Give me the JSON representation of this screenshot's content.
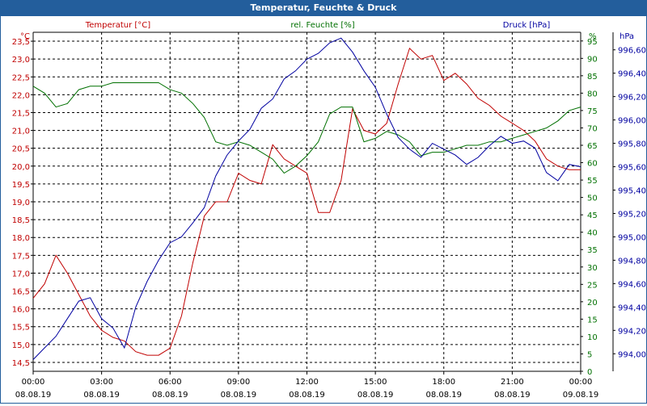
{
  "window": {
    "title": "Temperatur, Feuchte & Druck"
  },
  "chart_data": {
    "type": "line",
    "title": "Temperatur, Feuchte & Druck",
    "colors": {
      "temperature": "#c00000",
      "humidity": "#007000",
      "pressure": "#0000a0",
      "title_bar": "#235e9c",
      "grid": "#000000"
    },
    "legend": {
      "temperature": "Temperatur [°C]",
      "humidity": "rel. Feuchte [%]",
      "pressure": "Druck [hPa]"
    },
    "axes": {
      "left": {
        "unit": "°C",
        "min": 14.25,
        "max": 23.75,
        "ticks": [
          "14,5",
          "15,0",
          "15,5",
          "16,0",
          "16,5",
          "17,0",
          "17,5",
          "18,0",
          "18,5",
          "19,0",
          "19,5",
          "20,0",
          "20,5",
          "21,0",
          "21,5",
          "22,0",
          "22,5",
          "23,0",
          "23,5"
        ]
      },
      "middle": {
        "unit": "%",
        "min": 0,
        "max": 97.5,
        "ticks": [
          "0",
          "5",
          "10",
          "15",
          "20",
          "25",
          "30",
          "35",
          "40",
          "45",
          "50",
          "55",
          "60",
          "65",
          "70",
          "75",
          "80",
          "85",
          "90",
          "95"
        ]
      },
      "right": {
        "unit": "hPa",
        "min": 993.85,
        "max": 996.75,
        "ticks": [
          "994,00",
          "994,20",
          "994,40",
          "994,60",
          "994,80",
          "995,00",
          "995,20",
          "995,40",
          "995,60",
          "995,80",
          "996,00",
          "996,20",
          "996,40",
          "996,60"
        ]
      },
      "x": {
        "min_hours": 0,
        "max_hours": 24,
        "ticks": [
          {
            "time": "00:00",
            "date": "08.08.19"
          },
          {
            "time": "03:00",
            "date": "08.08.19"
          },
          {
            "time": "06:00",
            "date": "08.08.19"
          },
          {
            "time": "09:00",
            "date": "08.08.19"
          },
          {
            "time": "12:00",
            "date": "08.08.19"
          },
          {
            "time": "15:00",
            "date": "08.08.19"
          },
          {
            "time": "18:00",
            "date": "08.08.19"
          },
          {
            "time": "21:00",
            "date": "08.08.19"
          },
          {
            "time": "00:00",
            "date": "09.08.19"
          }
        ]
      }
    },
    "grid": true,
    "series": [
      {
        "name": "Temperatur [°C]",
        "axis": "left",
        "x": [
          0,
          0.5,
          1,
          1.5,
          2,
          2.5,
          3,
          3.5,
          4,
          4.5,
          5,
          5.5,
          6,
          6.5,
          7,
          7.5,
          8,
          8.5,
          9,
          9.5,
          10,
          10.5,
          11,
          11.5,
          12,
          12.5,
          13,
          13.5,
          14,
          14.5,
          15,
          15.5,
          16,
          16.5,
          17,
          17.5,
          18,
          18.5,
          19,
          19.5,
          20,
          20.5,
          21,
          21.5,
          22,
          22.5,
          23,
          23.5,
          24
        ],
        "values": [
          16.3,
          16.7,
          17.5,
          17.0,
          16.4,
          15.8,
          15.4,
          15.2,
          15.1,
          14.8,
          14.7,
          14.7,
          14.9,
          15.8,
          17.3,
          18.6,
          19.0,
          19.0,
          19.8,
          19.6,
          19.5,
          20.6,
          20.2,
          20.0,
          19.8,
          18.7,
          18.7,
          19.6,
          21.6,
          21.0,
          20.9,
          21.2,
          22.3,
          23.3,
          23.0,
          23.1,
          22.4,
          22.6,
          22.3,
          21.9,
          21.7,
          21.4,
          21.2,
          21.0,
          20.7,
          20.2,
          20.0,
          19.9,
          19.9
        ]
      },
      {
        "name": "rel. Feuchte [%]",
        "axis": "middle",
        "x": [
          0,
          0.5,
          1,
          1.5,
          2,
          2.5,
          3,
          3.5,
          4,
          4.5,
          5,
          5.5,
          6,
          6.5,
          7,
          7.5,
          8,
          8.5,
          9,
          9.5,
          10,
          10.5,
          11,
          11.5,
          12,
          12.5,
          13,
          13.5,
          14,
          14.5,
          15,
          15.5,
          16,
          16.5,
          17,
          17.5,
          18,
          18.5,
          19,
          19.5,
          20,
          20.5,
          21,
          21.5,
          22,
          22.5,
          23,
          23.5,
          24
        ],
        "values": [
          82,
          80,
          76,
          77,
          81,
          82,
          82,
          83,
          83,
          83,
          83,
          83,
          81,
          80,
          77,
          73,
          66,
          65,
          66,
          65,
          63,
          61,
          57,
          59,
          62,
          66,
          74,
          76,
          76,
          66,
          67,
          69,
          68,
          66,
          62,
          63,
          63,
          64,
          65,
          65,
          66,
          66,
          67,
          68,
          69,
          70,
          72,
          75,
          76
        ]
      },
      {
        "name": "Druck [hPa]",
        "axis": "right",
        "x": [
          0,
          0.5,
          1,
          1.5,
          2,
          2.5,
          3,
          3.5,
          4,
          4.5,
          5,
          5.5,
          6,
          6.5,
          7,
          7.5,
          8,
          8.5,
          9,
          9.5,
          10,
          10.5,
          11,
          11.5,
          12,
          12.5,
          13,
          13.5,
          14,
          14.5,
          15,
          15.5,
          16,
          16.5,
          17,
          17.5,
          18,
          18.5,
          19,
          19.5,
          20,
          20.5,
          21,
          21.5,
          22,
          22.5,
          23,
          23.5,
          24
        ],
        "values": [
          993.95,
          994.05,
          994.15,
          994.3,
          994.45,
          994.48,
          994.3,
          994.22,
          994.05,
          994.4,
          994.62,
          994.8,
          994.95,
          995.0,
          995.12,
          995.25,
          995.52,
          995.7,
          995.82,
          995.92,
          996.1,
          996.18,
          996.35,
          996.42,
          996.52,
          996.57,
          996.66,
          996.7,
          996.58,
          996.42,
          996.28,
          996.05,
          995.85,
          995.75,
          995.68,
          995.8,
          995.75,
          995.7,
          995.62,
          995.68,
          995.78,
          995.86,
          995.8,
          995.82,
          995.76,
          995.55,
          995.48,
          995.62,
          995.6
        ]
      }
    ]
  }
}
